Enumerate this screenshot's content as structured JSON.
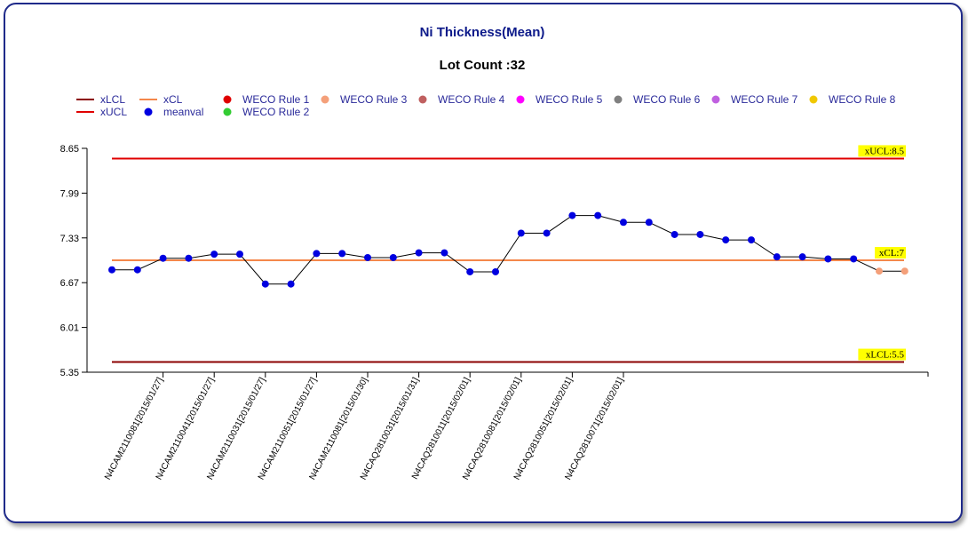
{
  "chart_data": {
    "type": "line",
    "title": "Ni Thickness(Mean)",
    "subtitle": "Lot Count :32",
    "ylim": [
      5.35,
      8.65
    ],
    "y_ticks": [
      "8.65",
      "7.99",
      "7.33",
      "6.67",
      "6.01",
      "5.35"
    ],
    "x_tick_labels": [
      "N4CAM2110081[2015/01/27]",
      "N4CAM2110041[2015/01/27]",
      "N4CAM2110031[2015/01/27]",
      "N4CAM2110051[2015/01/27]",
      "N4CAM2110081[2015/01/30]",
      "N4CAQ2810031[2015/01/31]",
      "N4CAQ2810011[2015/02/01]",
      "N4CAQ2810081[2015/02/01]",
      "N4CAQ2810051[2015/02/01]",
      "N4CAQ2810071[2015/02/01]"
    ],
    "limits": {
      "xUCL": {
        "value": 8.5,
        "label": "xUCL:8.5",
        "color": "#e00000"
      },
      "xCL": {
        "value": 7,
        "label": "xCL:7",
        "color": "#f4874b"
      },
      "xLCL": {
        "value": 5.5,
        "label": "xLCL:5.5",
        "color": "#8b0000"
      }
    },
    "series": [
      {
        "name": "meanval",
        "values": [
          6.86,
          6.86,
          7.03,
          7.03,
          7.09,
          7.09,
          6.65,
          6.65,
          7.1,
          7.1,
          7.04,
          7.04,
          7.11,
          7.11,
          6.83,
          6.83,
          7.4,
          7.4,
          7.66,
          7.66,
          7.56,
          7.56,
          7.38,
          7.38,
          7.3,
          7.3,
          7.05,
          7.05,
          7.02,
          7.02,
          6.84,
          6.84
        ],
        "point_rules": [
          "meanval",
          "meanval",
          "meanval",
          "meanval",
          "meanval",
          "meanval",
          "meanval",
          "meanval",
          "meanval",
          "meanval",
          "meanval",
          "meanval",
          "meanval",
          "meanval",
          "meanval",
          "meanval",
          "meanval",
          "meanval",
          "meanval",
          "meanval",
          "meanval",
          "meanval",
          "meanval",
          "meanval",
          "meanval",
          "meanval",
          "meanval",
          "meanval",
          "meanval",
          "meanval",
          "WECO Rule 3",
          "WECO Rule 3"
        ]
      }
    ],
    "legend": [
      {
        "name": "xLCL",
        "kind": "line",
        "color": "#8b0000"
      },
      {
        "name": "xUCL",
        "kind": "line",
        "color": "#e00000"
      },
      {
        "name": "xCL",
        "kind": "line",
        "color": "#f4874b"
      },
      {
        "name": "meanval",
        "kind": "dot",
        "color": "#0000e0"
      },
      {
        "name": "WECO Rule 1",
        "kind": "dot",
        "color": "#e00000"
      },
      {
        "name": "WECO Rule 2",
        "kind": "dot",
        "color": "#33cc33"
      },
      {
        "name": "WECO Rule 3",
        "kind": "dot",
        "color": "#f4a07a"
      },
      {
        "name": "WECO Rule 4",
        "kind": "dot",
        "color": "#c06060"
      },
      {
        "name": "WECO Rule 5",
        "kind": "dot",
        "color": "#ff00ff"
      },
      {
        "name": "WECO Rule 6",
        "kind": "dot",
        "color": "#808080"
      },
      {
        "name": "WECO Rule 7",
        "kind": "dot",
        "color": "#c060e0"
      },
      {
        "name": "WECO Rule 8",
        "kind": "dot",
        "color": "#f0c800"
      }
    ]
  }
}
